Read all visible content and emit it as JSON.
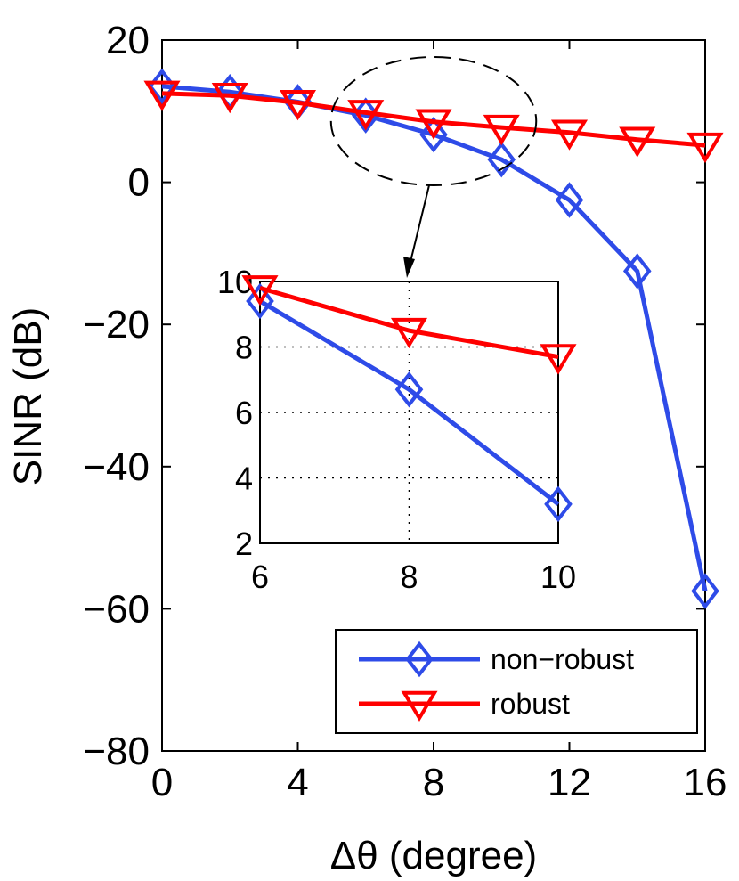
{
  "chart_data": {
    "type": "line",
    "title": "",
    "xlabel": "Δθ (degree)",
    "ylabel": "SINR (dB)",
    "xlim": [
      0,
      16
    ],
    "ylim": [
      -80,
      20
    ],
    "xticks": [
      0,
      4,
      8,
      12,
      16
    ],
    "yticks": [
      20,
      0,
      -20,
      -40,
      -60,
      -80
    ],
    "xtick_labels": [
      "0",
      "4",
      "8",
      "12",
      "16"
    ],
    "ytick_labels": [
      "20",
      "0",
      "−20",
      "−40",
      "−60",
      "−80"
    ],
    "x": [
      0,
      2,
      4,
      6,
      8,
      10,
      12,
      14,
      16
    ],
    "series": [
      {
        "name": "non−robust",
        "color": "#2E4BE8",
        "marker": "diamond",
        "values": [
          13.5,
          12.7,
          11.3,
          9.4,
          6.7,
          3.2,
          -2.5,
          -12.5,
          -57.5
        ]
      },
      {
        "name": "robust",
        "color": "#FF0000",
        "marker": "triangle-down",
        "values": [
          12.5,
          12.2,
          11.2,
          9.8,
          8.5,
          7.7,
          7.0,
          6.0,
          5.2
        ]
      }
    ],
    "legend": {
      "position": "bottom-right",
      "entries": [
        "non−robust",
        "robust"
      ]
    },
    "annotation": {
      "type": "dashed-ellipse-with-arrow",
      "target": "inset",
      "x_range": [
        6,
        10
      ]
    },
    "inset": {
      "xlim": [
        6,
        10
      ],
      "ylim": [
        2,
        10
      ],
      "xticks": [
        6,
        8,
        10
      ],
      "yticks": [
        10,
        8,
        6,
        4,
        2
      ],
      "xtick_labels": [
        "6",
        "8",
        "10"
      ],
      "ytick_labels": [
        "10",
        "8",
        "6",
        "4",
        "2"
      ],
      "grid": "dotted",
      "x": [
        6,
        8,
        10
      ],
      "series": [
        {
          "name": "non−robust",
          "values": [
            9.4,
            6.7,
            3.2
          ]
        },
        {
          "name": "robust",
          "values": [
            9.8,
            8.5,
            7.7
          ]
        }
      ]
    }
  }
}
